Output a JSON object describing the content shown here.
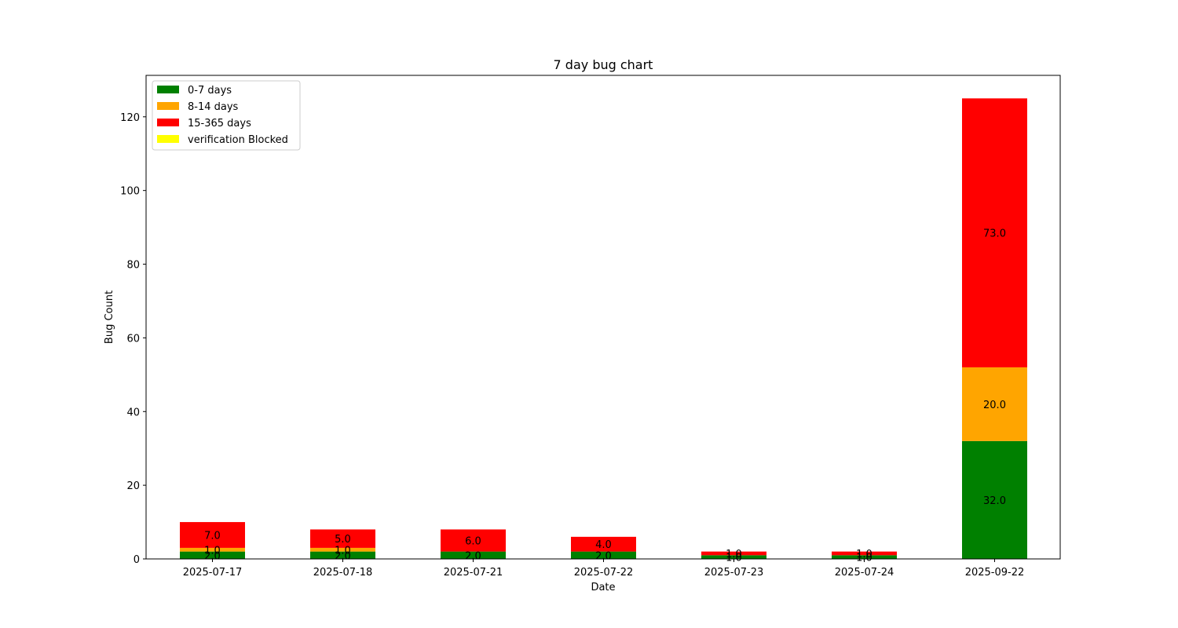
{
  "chart_data": {
    "type": "bar",
    "stacked": true,
    "title": "7 day bug chart",
    "xlabel": "Date",
    "ylabel": "Bug Count",
    "categories": [
      "2025-07-17",
      "2025-07-18",
      "2025-07-21",
      "2025-07-22",
      "2025-07-23",
      "2025-07-24",
      "2025-09-22"
    ],
    "series": [
      {
        "name": "0-7 days",
        "color": "#008000",
        "values": [
          2,
          2,
          2,
          2,
          1,
          1,
          32
        ]
      },
      {
        "name": "8-14 days",
        "color": "#ffa500",
        "values": [
          1,
          1,
          0,
          0,
          0,
          0,
          20
        ]
      },
      {
        "name": "15-365 days",
        "color": "#ff0000",
        "values": [
          7,
          5,
          6,
          4,
          1,
          1,
          73
        ]
      },
      {
        "name": "verification Blocked",
        "color": "#ffff00",
        "values": [
          0,
          0,
          0,
          0,
          0,
          0,
          0
        ]
      }
    ],
    "ylim": [
      0,
      131.25
    ],
    "yticks": [
      "0",
      "20",
      "40",
      "60",
      "80",
      "100",
      "120"
    ],
    "legend_position": "top-left",
    "grid": false
  }
}
